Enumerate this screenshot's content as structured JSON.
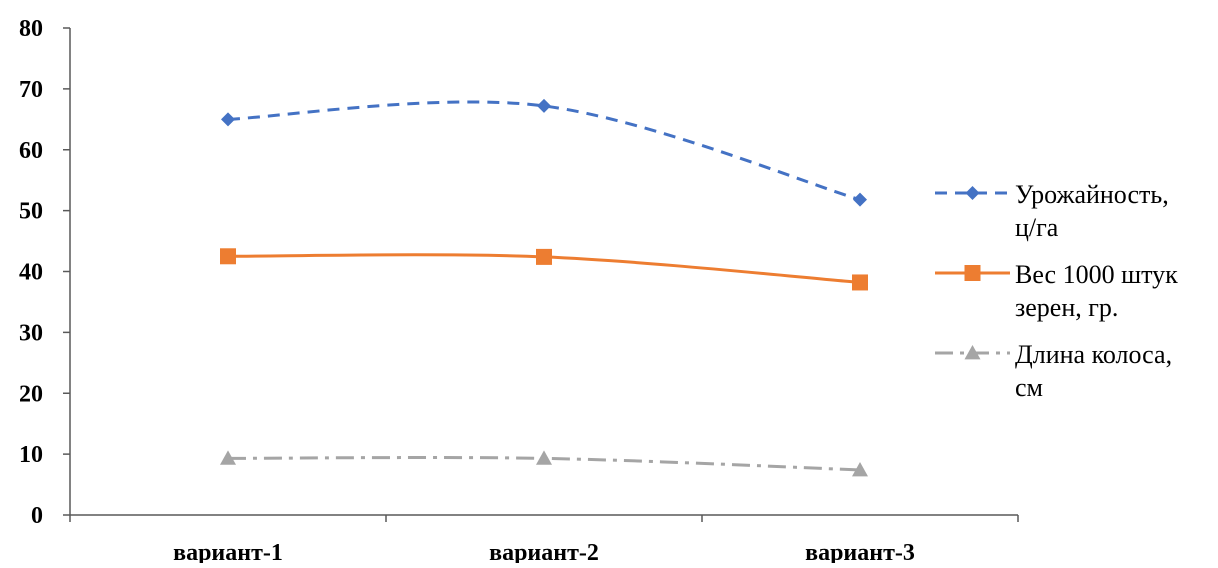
{
  "chart_data": {
    "type": "line",
    "categories": [
      "вариант-1",
      "вариант-2",
      "вариант-3"
    ],
    "ylim": [
      0,
      80
    ],
    "yticks": [
      0,
      10,
      20,
      30,
      40,
      50,
      60,
      70,
      80
    ],
    "smooth": true,
    "grid": false,
    "legend_position": "right",
    "series": [
      {
        "name": "Урожайность, ц/га",
        "name_lines": [
          "Урожайность,",
          "ц/га"
        ],
        "values": [
          65,
          67.2,
          51.8
        ],
        "color": "#4472C4",
        "dash": "dashed",
        "marker": "diamond"
      },
      {
        "name": "Вес 1000 штук зерен, гр.",
        "name_lines": [
          "Вес 1000 штук",
          "зерен, гр."
        ],
        "values": [
          42.5,
          42.4,
          38.2
        ],
        "color": "#ED7D31",
        "dash": "solid",
        "marker": "square"
      },
      {
        "name": "Длина колоса, см",
        "name_lines": [
          "Длина колоса,",
          "см"
        ],
        "values": [
          9.3,
          9.3,
          7.4
        ],
        "color": "#A5A5A5",
        "dash": "dashdot",
        "marker": "triangle"
      }
    ]
  }
}
